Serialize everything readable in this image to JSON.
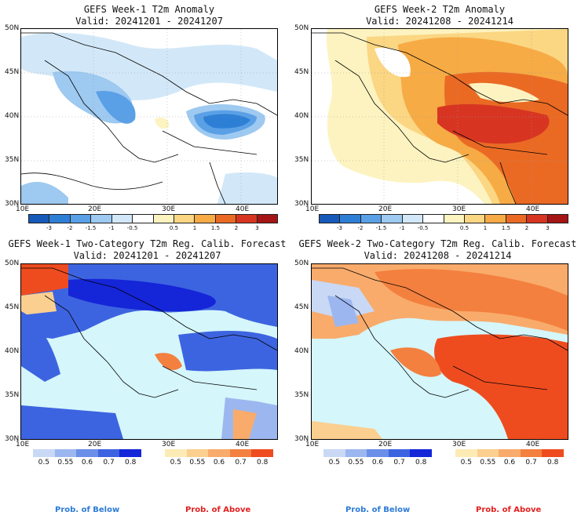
{
  "panels": {
    "tl": {
      "title": "GEFS Week-1 T2m Anomaly",
      "valid": "Valid: 20241201 - 20241207"
    },
    "tr": {
      "title": "GEFS Week-2 T2m Anomaly",
      "valid": "Valid: 20241208 - 20241214"
    },
    "bl": {
      "title": "GEFS Week-1 Two-Category T2m Reg. Calib. Forecast",
      "valid": "Valid: 20241201 - 20241207"
    },
    "br": {
      "title": "GEFS Week-2 Two-Category T2m Reg. Calib. Forecast",
      "valid": "Valid: 20241208 - 20241214"
    }
  },
  "axes": {
    "lat_labels": [
      "50N",
      "45N",
      "40N",
      "35N",
      "30N"
    ],
    "lon_labels": [
      "10E",
      "20E",
      "30E",
      "40E"
    ]
  },
  "anomaly_colorbar": {
    "labels": [
      "-3",
      "-2",
      "-1.5",
      "-1",
      "-0.5",
      "0.5",
      "1",
      "1.5",
      "2",
      "3"
    ],
    "colors": [
      "#1659b9",
      "#2d7fd6",
      "#5aa0e6",
      "#9ec9f0",
      "#d2e8f8",
      "#ffffff",
      "#fdf3c0",
      "#fbd683",
      "#f6ab45",
      "#ea6a24",
      "#d73522",
      "#a51515"
    ]
  },
  "prob_colorbars": {
    "labels": [
      "0.5",
      "0.55",
      "0.6",
      "0.7",
      "0.8"
    ],
    "below_colors": [
      "#c9d8f5",
      "#9cb7ef",
      "#6a8fe8",
      "#3d64e0",
      "#1525d8"
    ],
    "above_colors": [
      "#fdebb5",
      "#fbcf8f",
      "#f9ab6b",
      "#f3803f",
      "#ee4c1f"
    ],
    "below_label": "Prob. of Below",
    "above_label": "Prob. of Above"
  },
  "colors": {
    "sea_prob": "#d5f6fb",
    "below_text": "#2b7bd6",
    "above_text": "#e32020"
  }
}
